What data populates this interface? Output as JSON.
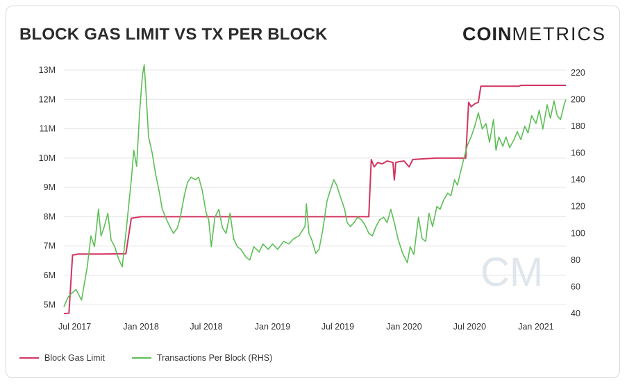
{
  "title": "BLOCK GAS LIMIT VS TX PER BLOCK",
  "logo": {
    "bold": "COIN",
    "light": "METRICS"
  },
  "watermark": "CM",
  "colors": {
    "gas": "#d2345f",
    "tx": "#5cbf55",
    "grid": "#e4e4e4"
  },
  "chart_data": {
    "type": "line",
    "title": "BLOCK GAS LIMIT VS TX PER BLOCK",
    "legend_position": "bottom-left",
    "grid": true,
    "x_ticks": [
      "Jul 2017",
      "Jan 2018",
      "Jul 2018",
      "Jan 2019",
      "Jul 2019",
      "Jan 2020",
      "Jul 2020",
      "Jan 2021"
    ],
    "y_left": {
      "ticks": [
        "5M",
        "6M",
        "7M",
        "8M",
        "9M",
        "10M",
        "11M",
        "12M",
        "13M"
      ],
      "range": [
        4700000,
        13000000
      ]
    },
    "y_right": {
      "ticks": [
        "40",
        "60",
        "80",
        "100",
        "120",
        "140",
        "160",
        "180",
        "200",
        "220"
      ],
      "range": [
        40,
        222
      ]
    },
    "series": [
      {
        "name": "Block Gas Limit",
        "axis": "left",
        "points": [
          [
            "2017-06-01",
            4700000
          ],
          [
            "2017-06-15",
            4710000
          ],
          [
            "2017-06-25",
            6700000
          ],
          [
            "2017-07-01",
            6700000
          ],
          [
            "2017-07-10",
            6730000
          ],
          [
            "2017-08-01",
            6730000
          ],
          [
            "2017-09-15",
            6730000
          ],
          [
            "2017-11-20",
            6740000
          ],
          [
            "2017-12-05",
            7950000
          ],
          [
            "2018-01-01",
            8000000
          ],
          [
            "2018-06-01",
            8000000
          ],
          [
            "2019-01-01",
            8000000
          ],
          [
            "2019-07-01",
            8000000
          ],
          [
            "2019-09-25",
            8000000
          ],
          [
            "2019-10-02",
            9950000
          ],
          [
            "2019-10-10",
            9700000
          ],
          [
            "2019-10-20",
            9850000
          ],
          [
            "2019-11-01",
            9800000
          ],
          [
            "2019-11-15",
            9900000
          ],
          [
            "2019-12-01",
            9850000
          ],
          [
            "2019-12-05",
            9250000
          ],
          [
            "2019-12-09",
            9850000
          ],
          [
            "2019-12-20",
            9880000
          ],
          [
            "2020-01-01",
            9900000
          ],
          [
            "2020-01-15",
            9700000
          ],
          [
            "2020-01-25",
            9950000
          ],
          [
            "2020-03-01",
            9980000
          ],
          [
            "2020-04-01",
            10000000
          ],
          [
            "2020-06-20",
            10000000
          ],
          [
            "2020-06-28",
            11900000
          ],
          [
            "2020-07-05",
            11750000
          ],
          [
            "2020-07-15",
            11850000
          ],
          [
            "2020-07-25",
            11900000
          ],
          [
            "2020-08-01",
            12450000
          ],
          [
            "2020-10-01",
            12450000
          ],
          [
            "2020-11-15",
            12450000
          ],
          [
            "2020-11-20",
            12480000
          ],
          [
            "2021-01-01",
            12480000
          ],
          [
            "2021-03-25",
            12480000
          ]
        ]
      },
      {
        "name": "Transactions Per Block (RHS)",
        "axis": "right",
        "points": [
          [
            "2017-06-01",
            45
          ],
          [
            "2017-06-12",
            52
          ],
          [
            "2017-06-22",
            55
          ],
          [
            "2017-07-05",
            58
          ],
          [
            "2017-07-20",
            50
          ],
          [
            "2017-08-05",
            75
          ],
          [
            "2017-08-15",
            98
          ],
          [
            "2017-08-25",
            90
          ],
          [
            "2017-09-05",
            118
          ],
          [
            "2017-09-12",
            98
          ],
          [
            "2017-09-20",
            104
          ],
          [
            "2017-10-01",
            115
          ],
          [
            "2017-10-10",
            95
          ],
          [
            "2017-10-20",
            90
          ],
          [
            "2017-11-01",
            80
          ],
          [
            "2017-11-10",
            75
          ],
          [
            "2017-11-20",
            100
          ],
          [
            "2017-12-05",
            140
          ],
          [
            "2017-12-12",
            162
          ],
          [
            "2017-12-20",
            150
          ],
          [
            "2017-12-28",
            190
          ],
          [
            "2018-01-05",
            218
          ],
          [
            "2018-01-10",
            226
          ],
          [
            "2018-01-15",
            205
          ],
          [
            "2018-01-22",
            172
          ],
          [
            "2018-02-01",
            160
          ],
          [
            "2018-02-10",
            145
          ],
          [
            "2018-02-20",
            132
          ],
          [
            "2018-03-01",
            118
          ],
          [
            "2018-03-10",
            112
          ],
          [
            "2018-03-20",
            106
          ],
          [
            "2018-04-01",
            100
          ],
          [
            "2018-04-12",
            104
          ],
          [
            "2018-04-20",
            112
          ],
          [
            "2018-05-01",
            128
          ],
          [
            "2018-05-10",
            138
          ],
          [
            "2018-05-20",
            142
          ],
          [
            "2018-06-01",
            140
          ],
          [
            "2018-06-10",
            142
          ],
          [
            "2018-06-20",
            132
          ],
          [
            "2018-07-01",
            115
          ],
          [
            "2018-07-08",
            110
          ],
          [
            "2018-07-15",
            90
          ],
          [
            "2018-07-25",
            112
          ],
          [
            "2018-08-05",
            118
          ],
          [
            "2018-08-15",
            104
          ],
          [
            "2018-08-25",
            100
          ],
          [
            "2018-09-05",
            115
          ],
          [
            "2018-09-15",
            96
          ],
          [
            "2018-09-25",
            90
          ],
          [
            "2018-10-05",
            88
          ],
          [
            "2018-10-20",
            82
          ],
          [
            "2018-10-30",
            80
          ],
          [
            "2018-11-10",
            90
          ],
          [
            "2018-11-25",
            86
          ],
          [
            "2018-12-05",
            92
          ],
          [
            "2018-12-20",
            88
          ],
          [
            "2019-01-01",
            92
          ],
          [
            "2019-01-15",
            88
          ],
          [
            "2019-02-01",
            94
          ],
          [
            "2019-02-15",
            92
          ],
          [
            "2019-03-01",
            96
          ],
          [
            "2019-03-15",
            98
          ],
          [
            "2019-04-01",
            105
          ],
          [
            "2019-04-05",
            122
          ],
          [
            "2019-04-12",
            100
          ],
          [
            "2019-04-20",
            95
          ],
          [
            "2019-05-01",
            85
          ],
          [
            "2019-05-10",
            88
          ],
          [
            "2019-05-20",
            102
          ],
          [
            "2019-06-01",
            124
          ],
          [
            "2019-06-10",
            132
          ],
          [
            "2019-06-20",
            140
          ],
          [
            "2019-06-28",
            136
          ],
          [
            "2019-07-05",
            130
          ],
          [
            "2019-07-15",
            122
          ],
          [
            "2019-07-20",
            118
          ],
          [
            "2019-07-27",
            108
          ],
          [
            "2019-08-05",
            105
          ],
          [
            "2019-08-15",
            108
          ],
          [
            "2019-08-25",
            112
          ],
          [
            "2019-09-05",
            110
          ],
          [
            "2019-09-15",
            106
          ],
          [
            "2019-09-25",
            100
          ],
          [
            "2019-10-05",
            98
          ],
          [
            "2019-10-15",
            105
          ],
          [
            "2019-10-25",
            110
          ],
          [
            "2019-11-05",
            112
          ],
          [
            "2019-11-15",
            108
          ],
          [
            "2019-11-25",
            118
          ],
          [
            "2019-12-05",
            108
          ],
          [
            "2019-12-15",
            96
          ],
          [
            "2019-12-28",
            85
          ],
          [
            "2020-01-10",
            78
          ],
          [
            "2020-01-18",
            90
          ],
          [
            "2020-01-28",
            84
          ],
          [
            "2020-02-10",
            112
          ],
          [
            "2020-02-20",
            96
          ],
          [
            "2020-03-01",
            94
          ],
          [
            "2020-03-10",
            115
          ],
          [
            "2020-03-20",
            105
          ],
          [
            "2020-04-01",
            120
          ],
          [
            "2020-04-10",
            118
          ],
          [
            "2020-04-20",
            125
          ],
          [
            "2020-05-01",
            130
          ],
          [
            "2020-05-10",
            128
          ],
          [
            "2020-05-20",
            140
          ],
          [
            "2020-05-28",
            136
          ],
          [
            "2020-06-05",
            145
          ],
          [
            "2020-06-15",
            156
          ],
          [
            "2020-06-25",
            166
          ],
          [
            "2020-07-05",
            172
          ],
          [
            "2020-07-15",
            180
          ],
          [
            "2020-07-25",
            190
          ],
          [
            "2020-08-05",
            178
          ],
          [
            "2020-08-15",
            182
          ],
          [
            "2020-08-25",
            168
          ],
          [
            "2020-09-05",
            185
          ],
          [
            "2020-09-12",
            162
          ],
          [
            "2020-09-20",
            172
          ],
          [
            "2020-10-01",
            165
          ],
          [
            "2020-10-10",
            172
          ],
          [
            "2020-10-20",
            164
          ],
          [
            "2020-11-01",
            170
          ],
          [
            "2020-11-10",
            176
          ],
          [
            "2020-11-20",
            170
          ],
          [
            "2020-12-01",
            180
          ],
          [
            "2020-12-10",
            175
          ],
          [
            "2020-12-20",
            188
          ],
          [
            "2021-01-01",
            182
          ],
          [
            "2021-01-10",
            192
          ],
          [
            "2021-01-20",
            178
          ],
          [
            "2021-02-01",
            196
          ],
          [
            "2021-02-10",
            186
          ],
          [
            "2021-02-20",
            199
          ],
          [
            "2021-03-01",
            188
          ],
          [
            "2021-03-10",
            185
          ],
          [
            "2021-03-20",
            196
          ],
          [
            "2021-03-25",
            200
          ]
        ]
      }
    ]
  }
}
